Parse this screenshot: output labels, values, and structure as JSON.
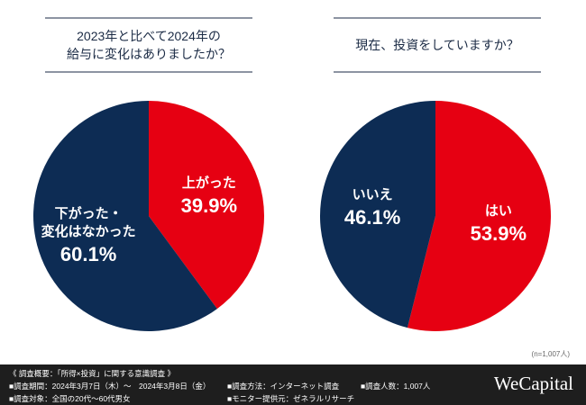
{
  "chart_data": [
    {
      "type": "pie",
      "title": "2023年と比べて2024年の\n給与に変化はありましたか？",
      "categories": [
        "上がった",
        "下がった・\n変化はなかった"
      ],
      "values": [
        39.9,
        60.1
      ],
      "value_labels": [
        "39.9%",
        "60.1%"
      ],
      "colors": [
        "#e60012",
        "#0d2c54"
      ]
    },
    {
      "type": "pie",
      "title": "現在、投資をしていますか？",
      "categories": [
        "はい",
        "いいえ"
      ],
      "values": [
        53.9,
        46.1
      ],
      "value_labels": [
        "53.9%",
        "46.1%"
      ],
      "colors": [
        "#e60012",
        "#0d2c54"
      ]
    }
  ],
  "sample_note": "(n=1,007人)",
  "footer": {
    "heading": "《 調査概要：「所得×投資」に関する意識調査 》",
    "items": [
      "■調査期間：2024年3月7日（木）〜　2024年3月8日（金）",
      "■調査方法：インターネット調査",
      "■調査人数：1,007人",
      "■調査対象：全国の20代〜60代男女",
      "■モニター提供元：ゼネラルリサーチ"
    ]
  },
  "logo": "WeCapital"
}
